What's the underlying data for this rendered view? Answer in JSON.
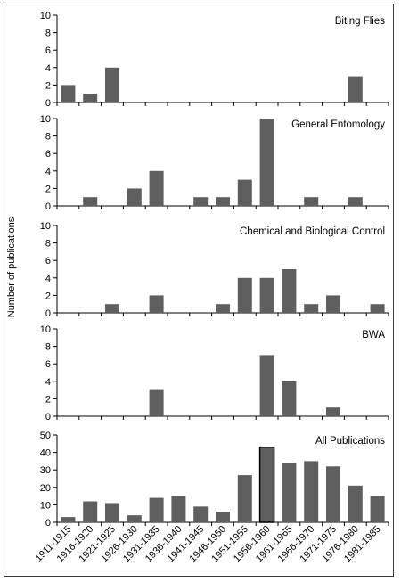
{
  "chart_data": {
    "type": "bar",
    "ylabel": "Number of publications",
    "categories": [
      "1911-1915",
      "1916-1920",
      "1921-1925",
      "1926-1930",
      "1931-1935",
      "1936-1940",
      "1941-1945",
      "1946-1950",
      "1951-1955",
      "1956-1960",
      "1961-1965",
      "1966-1970",
      "1971-1975",
      "1976-1980",
      "1981-1985"
    ],
    "colors": {
      "bar": "#5f5f5f",
      "bar_highlight_stroke": "#000000",
      "axis": "#000000",
      "frame": "#3a3a3a"
    },
    "panels": [
      {
        "title": "Biting Flies",
        "ylim": [
          0,
          10
        ],
        "yticks": [
          0,
          2,
          4,
          6,
          8,
          10
        ],
        "values": [
          2,
          1,
          4,
          0,
          0,
          0,
          0,
          0,
          0,
          0,
          0,
          0,
          0,
          3,
          0
        ]
      },
      {
        "title": "General Entomology",
        "ylim": [
          0,
          10
        ],
        "yticks": [
          0,
          2,
          4,
          6,
          8,
          10
        ],
        "values": [
          0,
          1,
          0,
          2,
          4,
          0,
          1,
          1,
          3,
          10,
          0,
          1,
          0,
          1,
          0
        ]
      },
      {
        "title": "Chemical and Biological Control",
        "ylim": [
          0,
          10
        ],
        "yticks": [
          0,
          2,
          4,
          6,
          8,
          10
        ],
        "values": [
          0,
          0,
          1,
          0,
          2,
          0,
          0,
          1,
          4,
          4,
          5,
          1,
          2,
          0,
          1
        ]
      },
      {
        "title": "BWA",
        "ylim": [
          0,
          10
        ],
        "yticks": [
          0,
          2,
          4,
          6,
          8,
          10
        ],
        "values": [
          0,
          0,
          0,
          0,
          3,
          0,
          0,
          0,
          0,
          7,
          4,
          0,
          1,
          0,
          0
        ]
      },
      {
        "title": "All Publications",
        "ylim": [
          0,
          50
        ],
        "yticks": [
          0,
          10,
          20,
          30,
          40,
          50
        ],
        "values": [
          3,
          12,
          11,
          4,
          14,
          15,
          9,
          6,
          27,
          43,
          34,
          35,
          32,
          21,
          15
        ],
        "highlight_index": 9
      }
    ]
  }
}
